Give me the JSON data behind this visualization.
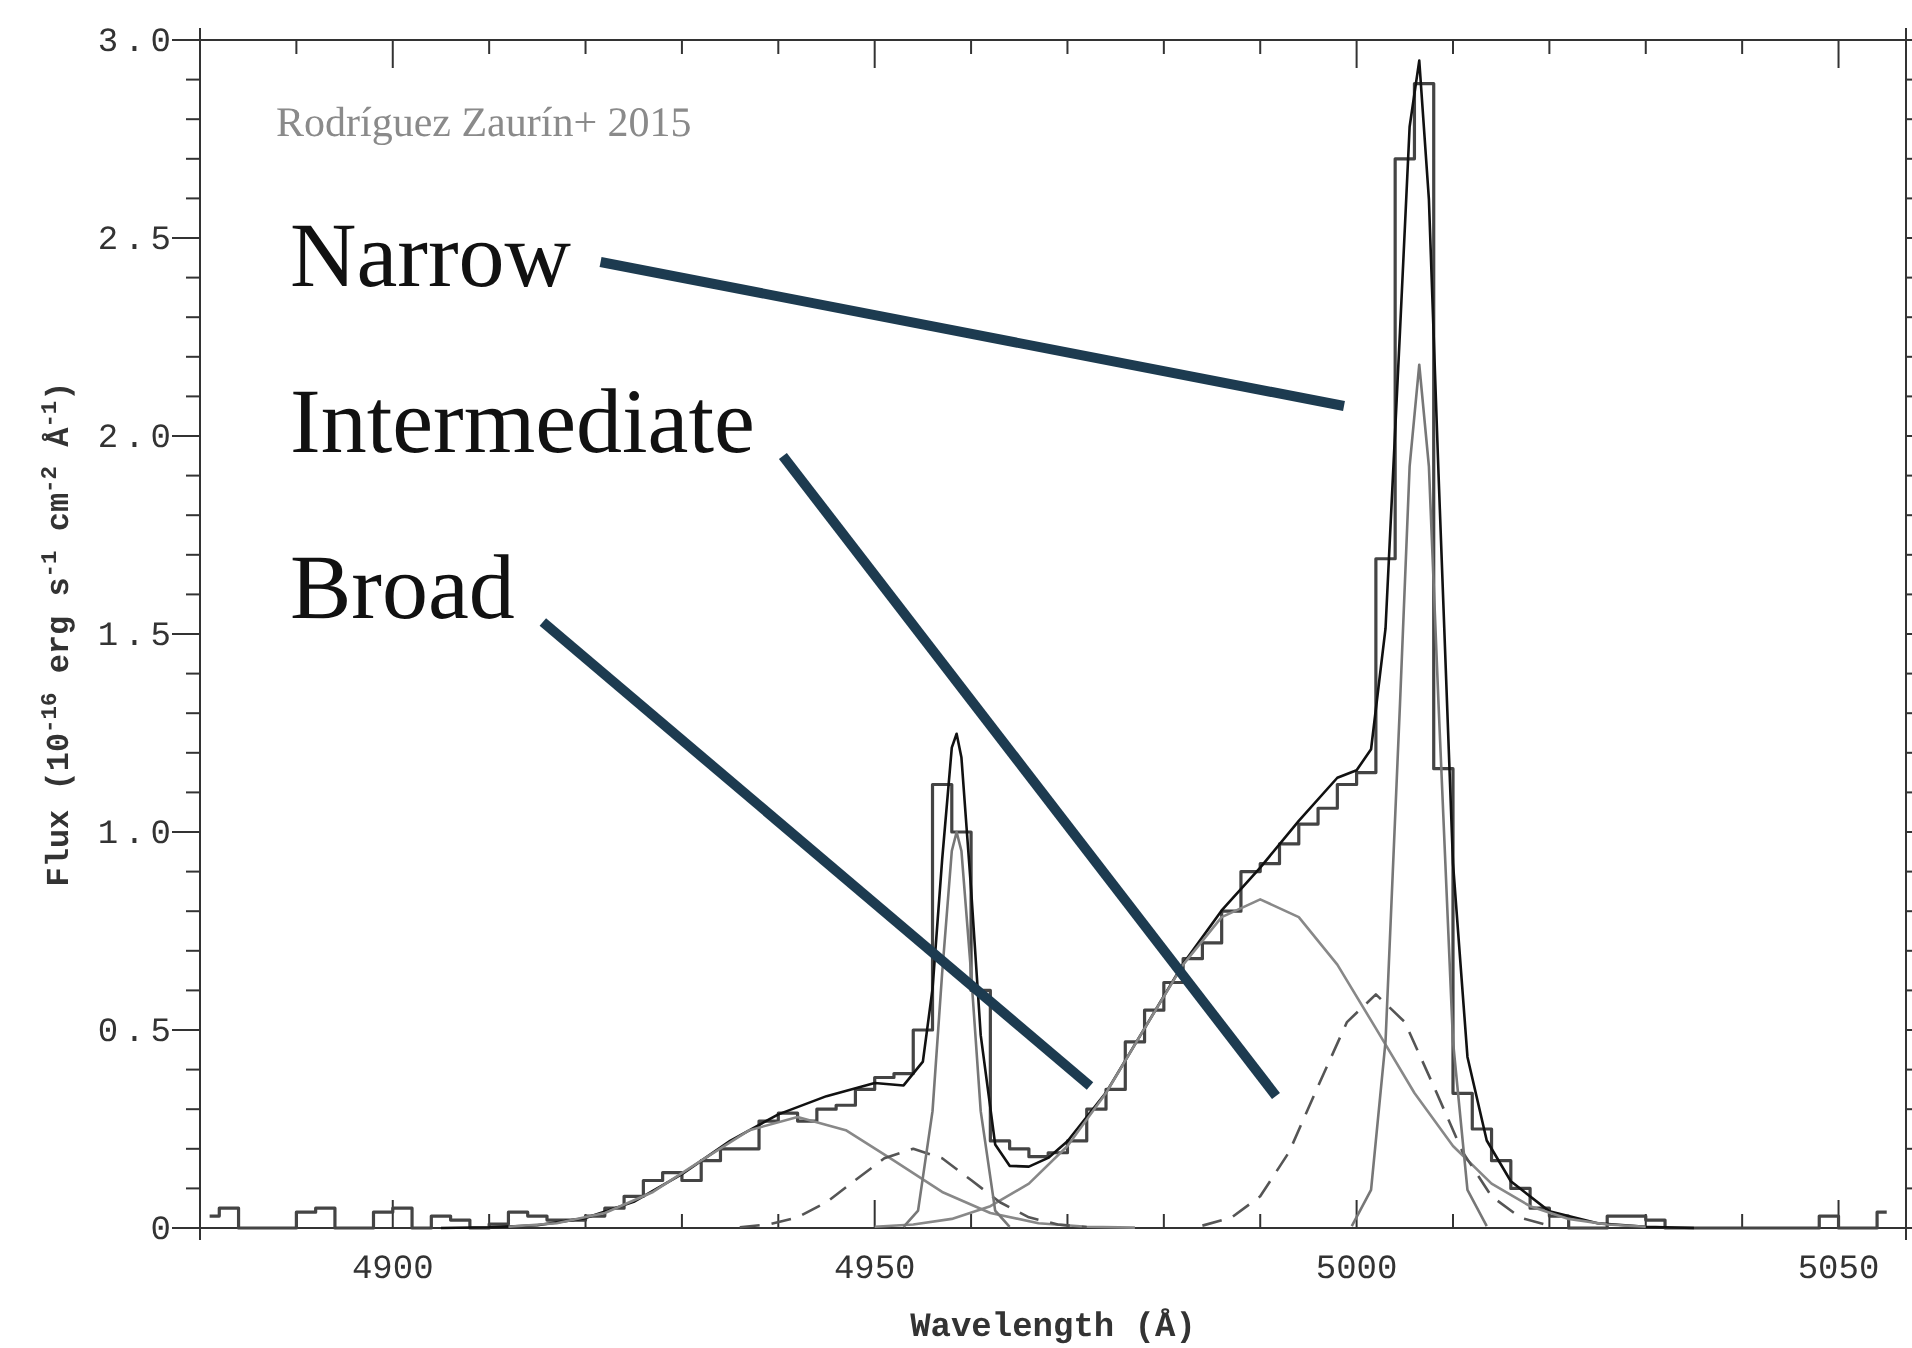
{
  "chart_data": {
    "type": "line",
    "xlabel": "Wavelength (Å)",
    "ylabel": "Flux (10$^{-16}$ erg s$^{-1}$ cm$^{-2}$ Å$^{-1}$)",
    "xlim": [
      4880,
      5057
    ],
    "ylim": [
      0,
      3
    ],
    "xticks": [
      {
        "value": 4880,
        "label": null
      },
      {
        "value": 4890,
        "label": null
      },
      4900,
      {
        "value": 4910,
        "label": null
      },
      {
        "value": 4920,
        "label": null
      },
      {
        "value": 4930,
        "label": null
      },
      {
        "value": 4940,
        "label": null
      },
      4950,
      {
        "value": 4960,
        "label": null
      },
      {
        "value": 4970,
        "label": null
      },
      {
        "value": 4980,
        "label": null
      },
      {
        "value": 4990,
        "label": null
      },
      5000,
      {
        "value": 5010,
        "label": null
      },
      {
        "value": 5020,
        "label": null
      },
      {
        "value": 5030,
        "label": null
      },
      {
        "value": 5040,
        "label": null
      },
      5050
    ],
    "yticks": [
      0,
      {
        "value": 0.1,
        "label": null
      },
      {
        "value": 0.2,
        "label": null
      },
      {
        "value": 0.3,
        "label": null
      },
      {
        "value": 0.4,
        "label": null
      },
      0.5,
      {
        "value": 0.6,
        "label": null
      },
      {
        "value": 0.7,
        "label": null
      },
      {
        "value": 0.8,
        "label": null
      },
      {
        "value": 0.9,
        "label": null
      },
      {
        "value": 1,
        "label": "1.0"
      },
      {
        "value": 1.1,
        "label": null
      },
      {
        "value": 1.2,
        "label": null
      },
      {
        "value": 1.3,
        "label": null
      },
      {
        "value": 1.4,
        "label": null
      },
      1.5,
      {
        "value": 1.6,
        "label": null
      },
      {
        "value": 1.7,
        "label": null
      },
      {
        "value": 1.8,
        "label": null
      },
      {
        "value": 1.9,
        "label": null
      },
      {
        "value": 2,
        "label": "2.0"
      },
      {
        "value": 2.1,
        "label": null
      },
      {
        "value": 2.2,
        "label": null
      },
      {
        "value": 2.3,
        "label": null
      },
      {
        "value": 2.4,
        "label": null
      },
      2.5,
      {
        "value": 2.6,
        "label": null
      },
      {
        "value": 2.7,
        "label": null
      },
      {
        "value": 2.8,
        "label": null
      },
      {
        "value": 2.9,
        "label": null
      },
      {
        "value": 3,
        "label": "3.0"
      }
    ],
    "grid": false,
    "marker": "none",
    "series": [
      {
        "type": "step",
        "color": "#444444",
        "x": [
          4881,
          4883,
          4885,
          4887,
          4889,
          4891,
          4893,
          4895,
          4897,
          4899,
          4901,
          4903,
          4905,
          4907,
          4909,
          4911,
          4913,
          4915,
          4917,
          4919,
          4921,
          4923,
          4925,
          4927,
          4929,
          4931,
          4933,
          4935,
          4937,
          4939,
          4941,
          4943,
          4945,
          4947,
          4949,
          4951,
          4953,
          4955,
          4957,
          4959,
          4961,
          4963,
          4965,
          4967,
          4969,
          4971,
          4973,
          4975,
          4977,
          4979,
          4981,
          4983,
          4985,
          4987,
          4989,
          4991,
          4993,
          4995,
          4997,
          4999,
          5001,
          5003,
          5005,
          5007,
          5009,
          5011,
          5013,
          5015,
          5017,
          5019,
          5021,
          5023,
          5025,
          5027,
          5029,
          5031,
          5033,
          5035,
          5037,
          5039,
          5041,
          5043,
          5045,
          5047,
          5049,
          5051,
          5053,
          5055
        ],
        "values": [
          0.03,
          0.05,
          0,
          0,
          0,
          0.04,
          0.05,
          0,
          0,
          0.04,
          0.05,
          0,
          0.03,
          0.02,
          0,
          0.01,
          0.04,
          0.03,
          0.02,
          0.02,
          0.03,
          0.05,
          0.08,
          0.12,
          0.14,
          0.12,
          0.17,
          0.2,
          0.2,
          0.27,
          0.29,
          0.27,
          0.3,
          0.31,
          0.35,
          0.38,
          0.39,
          0.5,
          1.12,
          1,
          0.6,
          0.22,
          0.2,
          0.18,
          0.19,
          0.22,
          0.3,
          0.35,
          0.47,
          0.55,
          0.62,
          0.68,
          0.72,
          0.8,
          0.9,
          0.92,
          0.97,
          1.02,
          1.06,
          1.12,
          1.15,
          1.69,
          2.7,
          2.89,
          1.16,
          0.34,
          0.25,
          0.17,
          0.1,
          0.05,
          0.03,
          0,
          0,
          0.03,
          0.03,
          0.02,
          0,
          0,
          0,
          0,
          0,
          0,
          0,
          0,
          0.03,
          0,
          0,
          0.04
        ]
      },
      {
        "color": "#111111",
        "x": [
          4905,
          4910,
          4915,
          4920,
          4925,
          4930,
          4935,
          4940,
          4945,
          4950,
          4953,
          4955,
          4956,
          4957,
          4958,
          4958.5,
          4959,
          4960,
          4961,
          4962.5,
          4964,
          4966,
          4968,
          4970,
          4974,
          4978,
          4982,
          4986,
          4990,
          4994,
          4998,
          5000,
          5001.5,
          5003,
          5004.5,
          5005.5,
          5006.5,
          5007.5,
          5008.5,
          5010,
          5011.5,
          5013.5,
          5016,
          5020,
          5025,
          5030,
          5035
        ],
        "values": [
          0,
          0.002,
          0.007,
          0.025,
          0.066,
          0.136,
          0.22,
          0.287,
          0.333,
          0.366,
          0.36,
          0.42,
          0.604,
          0.93,
          1.213,
          1.248,
          1.188,
          0.856,
          0.487,
          0.211,
          0.157,
          0.155,
          0.177,
          0.219,
          0.342,
          0.504,
          0.667,
          0.802,
          0.91,
          1.028,
          1.137,
          1.156,
          1.209,
          1.514,
          2.264,
          2.781,
          2.948,
          2.598,
          1.904,
          0.921,
          0.432,
          0.221,
          0.118,
          0.042,
          0.012,
          0.003,
          0
        ]
      },
      {
        "type": "line",
        "color": "#888888",
        "x": [
          4912,
          4917,
          4922,
          4927,
          4932,
          4937,
          4942,
          4947,
          4952,
          4957,
          4962,
          4967,
          4972,
          4977
        ],
        "values": [
          0.003,
          0.012,
          0.038,
          0.091,
          0.17,
          0.247,
          0.28,
          0.247,
          0.17,
          0.091,
          0.038,
          0.012,
          0.003,
          0.001
        ]
      },
      {
        "type": "line",
        "color": "#888888",
        "x": [
          4950,
          4954,
          4958,
          4962,
          4966,
          4970,
          4974,
          4978,
          4982,
          4986,
          4990,
          4994,
          4998,
          5002,
          5006,
          5010,
          5014,
          5018,
          5022,
          5026,
          5030
        ],
        "values": [
          0.003,
          0.009,
          0.023,
          0.055,
          0.112,
          0.207,
          0.341,
          0.504,
          0.665,
          0.785,
          0.83,
          0.785,
          0.665,
          0.504,
          0.341,
          0.207,
          0.112,
          0.055,
          0.023,
          0.009,
          0.003
        ]
      },
      {
        "type": "line",
        "color": "#555555",
        "line_style": "dashed",
        "x": [
          4936,
          4939,
          4942,
          4945,
          4948,
          4951,
          4954,
          4957,
          4960,
          4963,
          4966,
          4969,
          4972
        ],
        "values": [
          0.002,
          0.009,
          0.027,
          0.065,
          0.121,
          0.176,
          0.2,
          0.176,
          0.121,
          0.065,
          0.027,
          0.009,
          0.002
        ]
      },
      {
        "type": "line",
        "color": "#555555",
        "line_style": "dashed",
        "x": [
          4984,
          4987,
          4990,
          4993,
          4996,
          4999,
          5002,
          5005,
          5008,
          5011,
          5014,
          5017,
          5020
        ],
        "values": [
          0.006,
          0.026,
          0.08,
          0.192,
          0.358,
          0.52,
          0.59,
          0.52,
          0.358,
          0.192,
          0.08,
          0.026,
          0.006
        ]
      },
      {
        "type": "line",
        "color": "#777777",
        "x": [
          4953,
          4954.5,
          4956,
          4957,
          4958,
          4958.5,
          4959,
          4960,
          4961,
          4962.5,
          4964
        ],
        "values": [
          0.003,
          0.044,
          0.295,
          0.644,
          0.952,
          1,
          0.952,
          0.644,
          0.295,
          0.044,
          0.003
        ]
      },
      {
        "type": "line",
        "color": "#777777",
        "x": [
          4999.5,
          5001.5,
          5003,
          5004.5,
          5005.5,
          5006.5,
          5007.5,
          5008.5,
          5010,
          5011.5,
          5013.5
        ],
        "values": [
          0.005,
          0.096,
          0.471,
          1.323,
          1.923,
          2.18,
          1.923,
          1.323,
          0.471,
          0.096,
          0.005
        ]
      }
    ],
    "annotations": [
      "Rodríguez Zaurín+ 2015",
      "Narrow",
      "Intermediate",
      "Broad"
    ]
  }
}
